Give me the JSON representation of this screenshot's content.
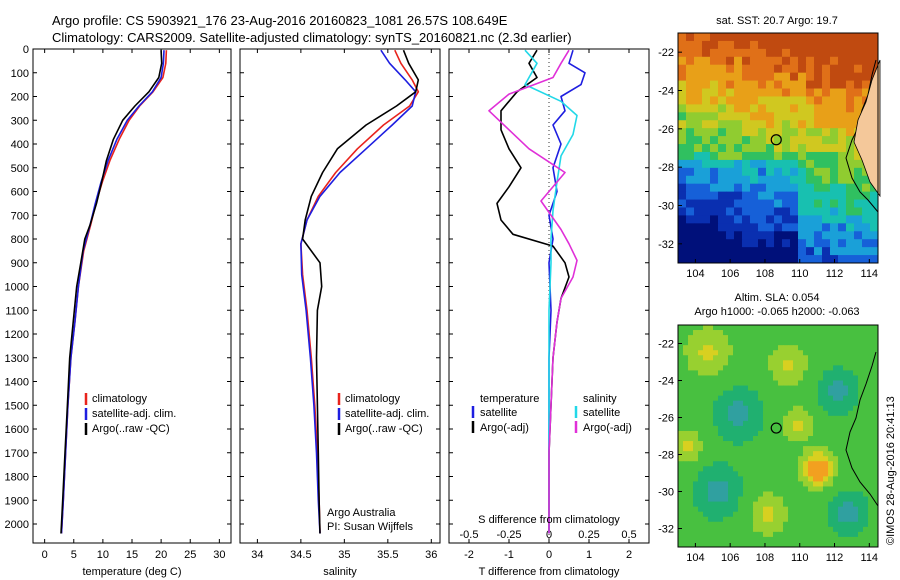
{
  "title_line1": "Argo profile: CS 5903921_176 23-Aug-2016 20160823_1081 26.57S 108.649E",
  "title_line2": "Climatology: CARS2009. Satellite-adjusted climatology: synTS_20160821.nc (2.3d earlier)",
  "footer_stamp": "©IMOS 28-Aug-2016 20:41:13",
  "chart_data": [
    {
      "id": "temperature",
      "type": "line",
      "xlabel": "temperature (deg C)",
      "xlim": [
        -2,
        32
      ],
      "ylim": [
        2080,
        0
      ],
      "xticks": [
        "0",
        "5",
        "10",
        "15",
        "20",
        "25",
        "30"
      ],
      "xtick_values": [
        0,
        5,
        10,
        15,
        20,
        25,
        30
      ],
      "yticks": [
        "0",
        "100",
        "200",
        "300",
        "400",
        "500",
        "600",
        "700",
        "800",
        "900",
        "1000",
        "1100",
        "1200",
        "1300",
        "1400",
        "1500",
        "1600",
        "1700",
        "1800",
        "1900",
        "2000"
      ],
      "ytick_values": [
        0,
        100,
        200,
        300,
        400,
        500,
        600,
        700,
        800,
        900,
        1000,
        1100,
        1200,
        1300,
        1400,
        1500,
        1600,
        1700,
        1800,
        1900,
        2000
      ],
      "legend": [
        "climatology",
        "satellite-adj. clim.",
        "Argo(..raw -QC)"
      ],
      "series": [
        {
          "name": "climatology",
          "color": "#e8231c",
          "points": [
            [
              20.9,
              5
            ],
            [
              20.8,
              60
            ],
            [
              20.3,
              120
            ],
            [
              18.6,
              180
            ],
            [
              16.3,
              240
            ],
            [
              14.5,
              300
            ],
            [
              12.8,
              380
            ],
            [
              11.2,
              470
            ],
            [
              9.9,
              560
            ],
            [
              8.8,
              650
            ],
            [
              7.9,
              740
            ],
            [
              6.7,
              850
            ],
            [
              5.8,
              1000
            ],
            [
              5.2,
              1150
            ],
            [
              4.5,
              1300
            ],
            [
              4.0,
              1500
            ],
            [
              3.6,
              1700
            ],
            [
              3.2,
              1900
            ],
            [
              2.9,
              2040
            ]
          ]
        },
        {
          "name": "satellite-adj. clim.",
          "color": "#1e1ee0",
          "points": [
            [
              20.5,
              5
            ],
            [
              20.4,
              60
            ],
            [
              20.0,
              120
            ],
            [
              18.5,
              180
            ],
            [
              16.2,
              240
            ],
            [
              14.2,
              300
            ],
            [
              12.4,
              380
            ],
            [
              10.9,
              470
            ],
            [
              9.7,
              560
            ],
            [
              8.7,
              650
            ],
            [
              7.8,
              740
            ],
            [
              6.6,
              850
            ],
            [
              5.8,
              1000
            ],
            [
              5.2,
              1150
            ],
            [
              4.5,
              1300
            ],
            [
              4.0,
              1500
            ],
            [
              3.6,
              1700
            ],
            [
              3.2,
              1900
            ],
            [
              2.9,
              2040
            ]
          ]
        },
        {
          "name": "Argo(..raw -QC)",
          "color": "#000000",
          "points": [
            [
              20.0,
              5
            ],
            [
              20.1,
              60
            ],
            [
              19.6,
              120
            ],
            [
              17.9,
              180
            ],
            [
              15.5,
              240
            ],
            [
              13.4,
              300
            ],
            [
              11.8,
              380
            ],
            [
              10.6,
              470
            ],
            [
              9.8,
              560
            ],
            [
              8.9,
              650
            ],
            [
              7.8,
              740
            ],
            [
              6.9,
              800
            ],
            [
              6.2,
              900
            ],
            [
              5.5,
              1000
            ],
            [
              4.9,
              1150
            ],
            [
              4.3,
              1300
            ],
            [
              3.9,
              1500
            ],
            [
              3.5,
              1700
            ],
            [
              3.1,
              1900
            ],
            [
              2.8,
              2040
            ]
          ]
        }
      ]
    },
    {
      "id": "salinity",
      "type": "line",
      "xlabel": "salinity",
      "xlim": [
        33.8,
        36.1
      ],
      "ylim": [
        2080,
        0
      ],
      "xticks": [
        "34",
        "34.5",
        "35",
        "35.5",
        "36"
      ],
      "xtick_values": [
        34,
        34.5,
        35,
        35.5,
        36
      ],
      "legend": [
        "climatology",
        "satellite-adj. clim.",
        "Argo(..raw -QC)"
      ],
      "annotation_line1": "Argo Australia",
      "annotation_line2": "PI: Susan Wijffels",
      "series": [
        {
          "name": "climatology",
          "color": "#e8231c",
          "points": [
            [
              35.58,
              5
            ],
            [
              35.65,
              60
            ],
            [
              35.78,
              130
            ],
            [
              35.85,
              180
            ],
            [
              35.75,
              240
            ],
            [
              35.45,
              320
            ],
            [
              35.15,
              420
            ],
            [
              34.9,
              520
            ],
            [
              34.7,
              620
            ],
            [
              34.57,
              720
            ],
            [
              34.5,
              820
            ],
            [
              34.52,
              950
            ],
            [
              34.57,
              1100
            ],
            [
              34.62,
              1300
            ],
            [
              34.66,
              1500
            ],
            [
              34.69,
              1700
            ],
            [
              34.71,
              1900
            ],
            [
              34.72,
              2040
            ]
          ]
        },
        {
          "name": "satellite-adj. clim.",
          "color": "#1e1ee0",
          "points": [
            [
              35.42,
              5
            ],
            [
              35.52,
              60
            ],
            [
              35.7,
              130
            ],
            [
              35.82,
              180
            ],
            [
              35.78,
              240
            ],
            [
              35.55,
              320
            ],
            [
              35.25,
              420
            ],
            [
              34.95,
              520
            ],
            [
              34.72,
              620
            ],
            [
              34.57,
              720
            ],
            [
              34.5,
              820
            ],
            [
              34.51,
              950
            ],
            [
              34.56,
              1100
            ],
            [
              34.61,
              1300
            ],
            [
              34.65,
              1500
            ],
            [
              34.68,
              1700
            ],
            [
              34.7,
              1900
            ],
            [
              34.72,
              2040
            ]
          ]
        },
        {
          "name": "Argo(..raw -QC)",
          "color": "#000000",
          "points": [
            [
              35.68,
              5
            ],
            [
              35.74,
              60
            ],
            [
              35.85,
              130
            ],
            [
              35.82,
              180
            ],
            [
              35.6,
              240
            ],
            [
              35.25,
              320
            ],
            [
              34.92,
              420
            ],
            [
              34.75,
              520
            ],
            [
              34.62,
              620
            ],
            [
              34.55,
              720
            ],
            [
              34.52,
              800
            ],
            [
              34.72,
              900
            ],
            [
              34.74,
              1000
            ],
            [
              34.69,
              1100
            ],
            [
              34.68,
              1300
            ],
            [
              34.69,
              1500
            ],
            [
              34.7,
              1700
            ],
            [
              34.71,
              1900
            ],
            [
              34.72,
              2040
            ]
          ]
        }
      ]
    },
    {
      "id": "differences",
      "type": "line",
      "xlabel": "T difference from climatology",
      "xlabel_top": "S difference from climatology",
      "xlim": [
        -2.5,
        2.5
      ],
      "ylim": [
        2080,
        0
      ],
      "xticks": [
        "-2",
        "-1",
        "0",
        "1",
        "2"
      ],
      "xtick_values": [
        -2,
        -1,
        0,
        1,
        2
      ],
      "xticks_top": [
        "-0.5",
        "-0.25",
        "0",
        "0.25",
        "0.5"
      ],
      "xtick_top_values": [
        -2,
        -1,
        0,
        1,
        2
      ],
      "legend_left_title": "temperature",
      "legend_right_title": "salinity",
      "legend_left": [
        "satellite",
        "Argo(-adj)"
      ],
      "legend_right": [
        "satellite",
        "Argo(-adj)"
      ],
      "series": [
        {
          "name": "temperature satellite",
          "color": "#1e1ee0",
          "points": [
            [
              0.6,
              5
            ],
            [
              0.5,
              60
            ],
            [
              0.9,
              100
            ],
            [
              0.8,
              150
            ],
            [
              0.3,
              200
            ],
            [
              0.4,
              260
            ],
            [
              0.1,
              320
            ],
            [
              0.3,
              400
            ],
            [
              0.1,
              500
            ],
            [
              0.2,
              600
            ],
            [
              0.0,
              700
            ],
            [
              0.1,
              800
            ],
            [
              0.0,
              900
            ],
            [
              0.05,
              1100
            ],
            [
              0.0,
              1300
            ],
            [
              0.0,
              1500
            ],
            [
              0.0,
              1700
            ],
            [
              0.0,
              1900
            ],
            [
              0.0,
              2040
            ]
          ]
        },
        {
          "name": "temperature Argo(-adj)",
          "color": "#000000",
          "points": [
            [
              -0.3,
              5
            ],
            [
              -0.5,
              60
            ],
            [
              -0.3,
              120
            ],
            [
              -0.8,
              180
            ],
            [
              -1.2,
              260
            ],
            [
              -1.2,
              340
            ],
            [
              -1.0,
              420
            ],
            [
              -0.7,
              500
            ],
            [
              -1.0,
              580
            ],
            [
              -1.3,
              650
            ],
            [
              -1.2,
              720
            ],
            [
              -0.9,
              780
            ],
            [
              0.1,
              830
            ],
            [
              0.4,
              900
            ],
            [
              0.5,
              960
            ],
            [
              0.3,
              1050
            ],
            [
              0.2,
              1150
            ],
            [
              0.1,
              1300
            ],
            [
              0.05,
              1500
            ],
            [
              0.0,
              1700
            ],
            [
              0.0,
              1900
            ],
            [
              0.0,
              2040
            ]
          ]
        },
        {
          "name": "salinity satellite",
          "color": "#22d8e8",
          "points": [
            [
              -0.6,
              5
            ],
            [
              -0.3,
              60
            ],
            [
              -0.6,
              150
            ],
            [
              0.3,
              220
            ],
            [
              0.7,
              280
            ],
            [
              0.6,
              360
            ],
            [
              0.3,
              450
            ],
            [
              0.2,
              560
            ],
            [
              0.1,
              680
            ],
            [
              0.05,
              800
            ],
            [
              0.05,
              900
            ],
            [
              0.0,
              1100
            ],
            [
              0.0,
              1300
            ],
            [
              0.0,
              1500
            ],
            [
              0.0,
              1700
            ],
            [
              0.0,
              1900
            ],
            [
              0.0,
              2040
            ]
          ]
        },
        {
          "name": "salinity Argo(-adj)",
          "color": "#e030d8",
          "points": [
            [
              0.5,
              5
            ],
            [
              0.3,
              60
            ],
            [
              0.1,
              120
            ],
            [
              -1.0,
              190
            ],
            [
              -1.5,
              260
            ],
            [
              -1.0,
              340
            ],
            [
              -0.5,
              420
            ],
            [
              0.4,
              520
            ],
            [
              -0.2,
              640
            ],
            [
              0.3,
              760
            ],
            [
              0.5,
              820
            ],
            [
              0.7,
              890
            ],
            [
              0.6,
              960
            ],
            [
              0.3,
              1050
            ],
            [
              0.2,
              1150
            ],
            [
              0.1,
              1300
            ],
            [
              0.05,
              1500
            ],
            [
              0.0,
              1700
            ],
            [
              0.0,
              1900
            ],
            [
              0.0,
              2040
            ]
          ]
        }
      ]
    },
    {
      "id": "sst_map",
      "type": "heatmap",
      "title": "sat. SST: 20.7 Argo: 19.7",
      "xticks": [
        "104",
        "106",
        "108",
        "110",
        "112",
        "114"
      ],
      "xtick_values": [
        104,
        106,
        108,
        110,
        112,
        114
      ],
      "yticks": [
        "-22",
        "-24",
        "-26",
        "-28",
        "-30",
        "-32"
      ],
      "ytick_values": [
        -22,
        -24,
        -26,
        -28,
        -30,
        -32
      ],
      "xlim": [
        103,
        114.5
      ],
      "ylim": [
        -21,
        -33
      ],
      "argo_location": [
        108.649,
        -26.57
      ]
    },
    {
      "id": "sla_map",
      "type": "heatmap",
      "title_line1": "Altim. SLA: 0.054",
      "title_line2": "Argo h1000: -0.065 h2000: -0.063",
      "xticks": [
        "104",
        "106",
        "108",
        "110",
        "112",
        "114"
      ],
      "xtick_values": [
        104,
        106,
        108,
        110,
        112,
        114
      ],
      "yticks": [
        "-22",
        "-24",
        "-26",
        "-28",
        "-30",
        "-32"
      ],
      "ytick_values": [
        -22,
        -24,
        -26,
        -28,
        -30,
        -32
      ],
      "xlim": [
        103,
        114.5
      ],
      "ylim": [
        -21,
        -33
      ],
      "argo_location": [
        108.649,
        -26.57
      ]
    }
  ]
}
